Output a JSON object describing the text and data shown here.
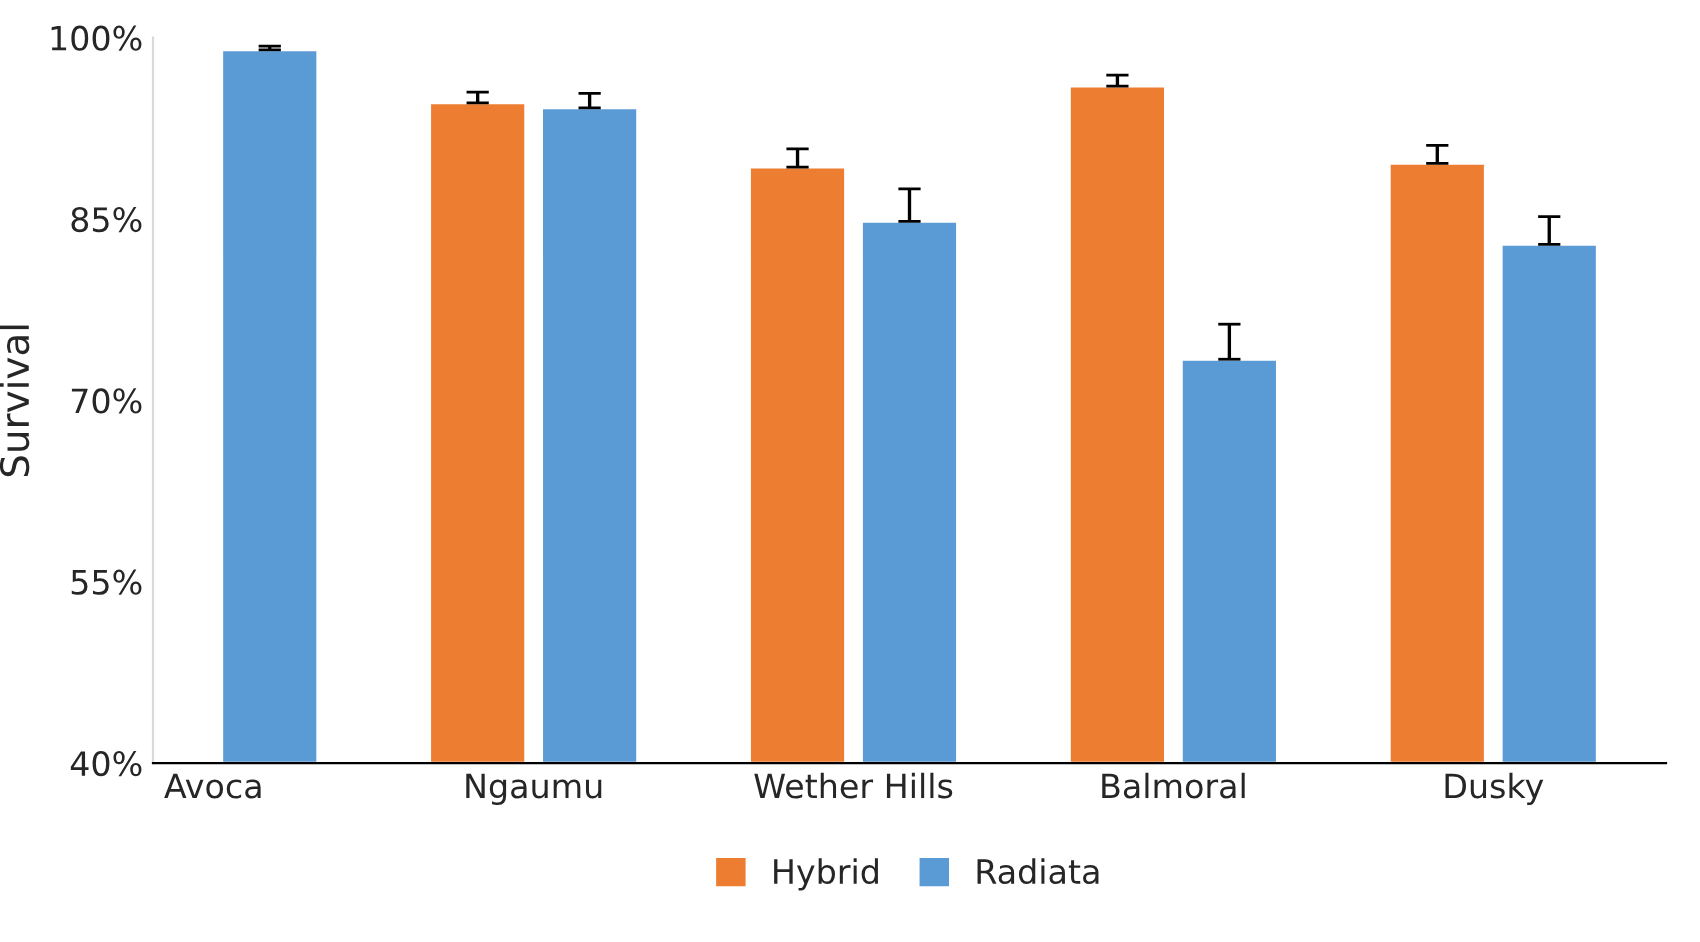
{
  "chart_data": {
    "type": "bar",
    "ylabel": "Survival",
    "categories": [
      "Avoca",
      "Ngaumu",
      "Wether Hills",
      "Balmoral",
      "Dusky"
    ],
    "series": [
      {
        "name": "Hybrid",
        "color": "#ed7d31",
        "values": [
          null,
          94.6,
          89.3,
          96.0,
          89.6
        ],
        "errors": [
          null,
          [
            94.6,
            95.5
          ],
          [
            89.3,
            90.8
          ],
          [
            96.0,
            96.9
          ],
          [
            89.6,
            91.1
          ]
        ]
      },
      {
        "name": "Radiata",
        "color": "#5b9bd5",
        "values": [
          99.0,
          94.2,
          84.8,
          73.4,
          82.9
        ],
        "errors": [
          [
            99.0,
            99.3
          ],
          [
            94.2,
            95.4
          ],
          [
            84.8,
            87.5
          ],
          [
            73.4,
            76.3
          ],
          [
            82.9,
            85.2
          ]
        ]
      }
    ],
    "ylim": [
      40,
      100
    ],
    "yticks": [
      {
        "value": 40,
        "label": "40%"
      },
      {
        "value": 55,
        "label": "55%"
      },
      {
        "value": 70,
        "label": "70%"
      },
      {
        "value": 85,
        "label": "85%"
      },
      {
        "value": 100,
        "label": "100%"
      }
    ],
    "grid": false,
    "legend": "bottom"
  }
}
